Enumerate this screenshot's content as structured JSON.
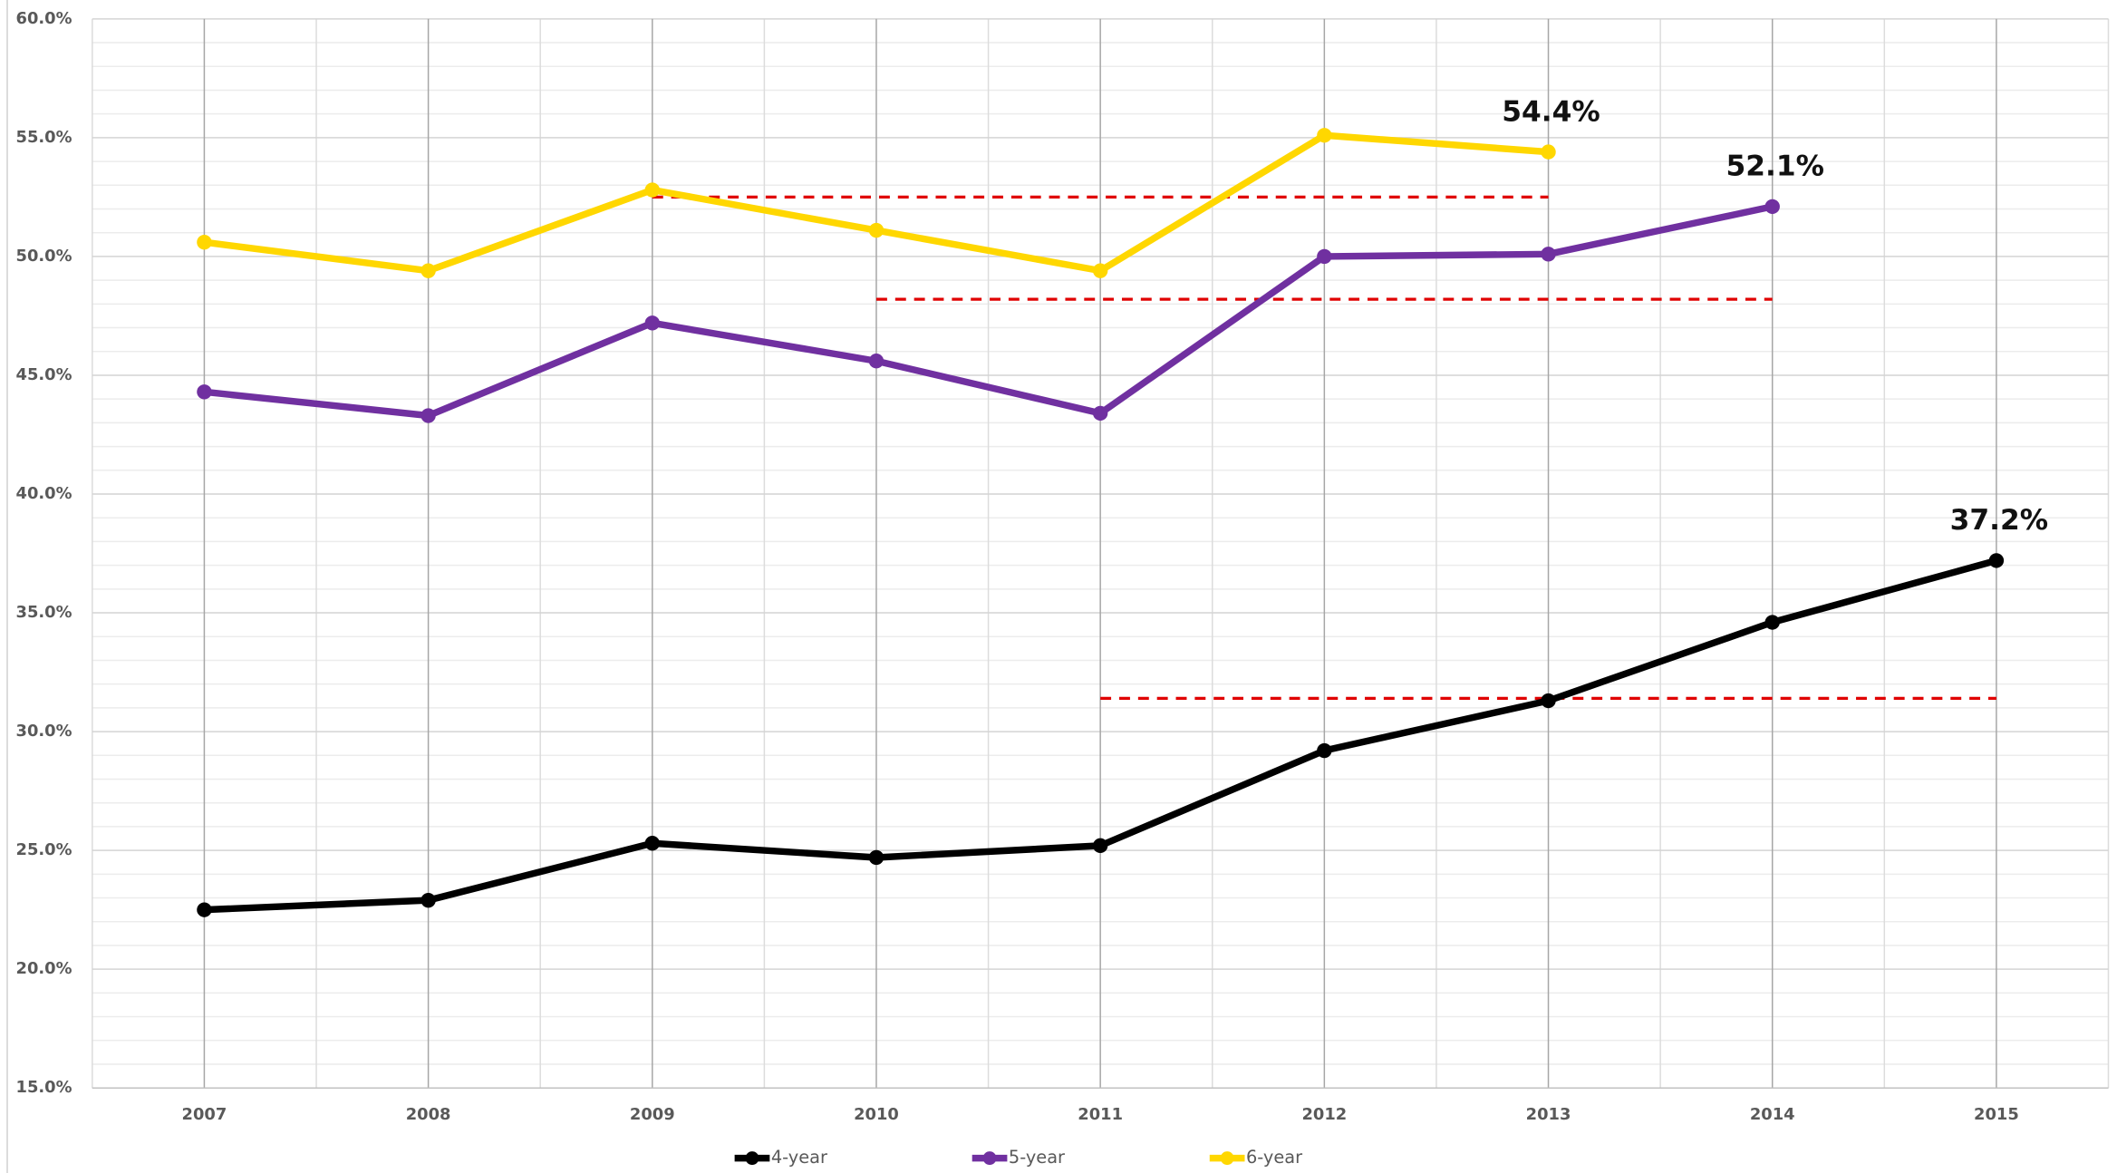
{
  "chart_data": {
    "type": "line",
    "categories": [
      "2007",
      "2008",
      "2009",
      "2010",
      "2011",
      "2012",
      "2013",
      "2014",
      "2015"
    ],
    "series": [
      {
        "name": "4-year",
        "color": "#000000",
        "values": [
          22.5,
          22.9,
          25.3,
          24.7,
          25.2,
          29.2,
          31.3,
          34.6,
          37.2
        ],
        "value_labels": [
          null,
          null,
          null,
          null,
          null,
          null,
          null,
          null,
          "37.2%"
        ]
      },
      {
        "name": "5-year",
        "color": "#7030a0",
        "values": [
          44.3,
          43.3,
          47.2,
          45.6,
          43.4,
          50.0,
          50.1,
          52.1,
          null
        ],
        "value_labels": [
          null,
          null,
          null,
          null,
          null,
          null,
          null,
          "52.1%",
          null
        ]
      },
      {
        "name": "6-year",
        "color": "#ffd700",
        "values": [
          50.6,
          49.4,
          52.8,
          51.1,
          49.4,
          55.1,
          54.4,
          null,
          null
        ],
        "value_labels": [
          null,
          null,
          null,
          null,
          null,
          null,
          "54.4%",
          null,
          null
        ]
      }
    ],
    "reference_lines": [
      {
        "from": "2009",
        "to": "2013",
        "value": 52.5,
        "color": "#e00000"
      },
      {
        "from": "2010",
        "to": "2014",
        "value": 48.2,
        "color": "#e00000"
      },
      {
        "from": "2011",
        "to": "2015",
        "value": 31.4,
        "color": "#e00000"
      }
    ],
    "ylim": [
      15,
      60
    ],
    "yticks": [
      {
        "value": 15,
        "label": "15.0%"
      },
      {
        "value": 20,
        "label": "20.0%"
      },
      {
        "value": 25,
        "label": "25.0%"
      },
      {
        "value": 30,
        "label": "30.0%"
      },
      {
        "value": 35,
        "label": "35.0%"
      },
      {
        "value": 40,
        "label": "40.0%"
      },
      {
        "value": 45,
        "label": "45.0%"
      },
      {
        "value": 50,
        "label": "50.0%"
      },
      {
        "value": 55,
        "label": "55.0%"
      },
      {
        "value": 60,
        "label": "60.0%"
      }
    ],
    "y_minor_ticks": [
      16,
      17,
      18,
      19,
      21,
      22,
      23,
      24,
      26,
      27,
      28,
      29,
      31,
      32,
      33,
      34,
      36,
      37,
      38,
      39,
      41,
      42,
      43,
      44,
      46,
      47,
      48,
      49,
      51,
      52,
      53,
      54,
      56,
      57,
      58,
      59
    ],
    "grid": true,
    "legend": "bottom"
  }
}
